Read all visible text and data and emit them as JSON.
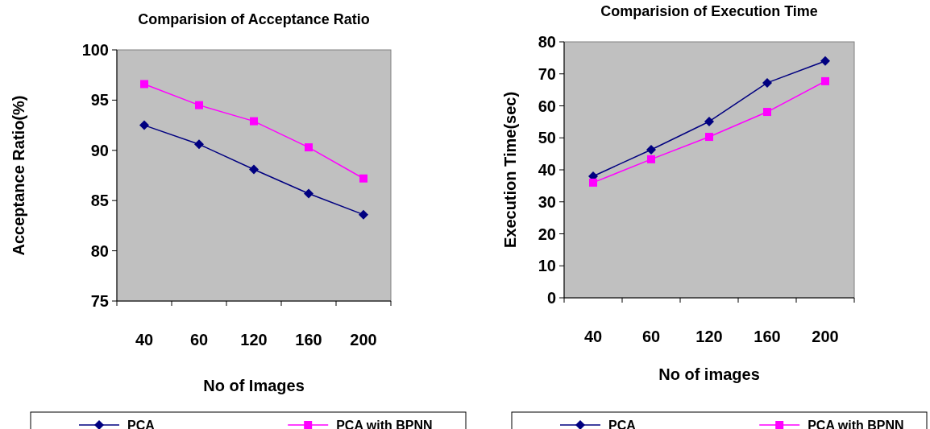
{
  "chart_data": [
    {
      "type": "line",
      "title": "Comparision of Acceptance Ratio",
      "xlabel": "No of Images",
      "ylabel": "Acceptance Ratio(%)",
      "categories": [
        "40",
        "60",
        "120",
        "160",
        "200"
      ],
      "series": [
        {
          "name": "PCA",
          "color": "#000080",
          "marker": "diamond",
          "values": [
            92.5,
            90.6,
            88.1,
            85.7,
            83.6
          ]
        },
        {
          "name": "PCA with BPNN",
          "color": "#ff00ff",
          "marker": "square",
          "values": [
            96.6,
            94.5,
            92.9,
            90.3,
            87.2
          ]
        }
      ],
      "ylim": [
        75,
        100
      ],
      "yticks": [
        75,
        80,
        85,
        90,
        95,
        100
      ],
      "legend": "bottom",
      "grid": false
    },
    {
      "type": "line",
      "title": "Comparision of Execution Time",
      "xlabel": "No of images",
      "ylabel": "Execution Time(sec)",
      "categories": [
        "40",
        "60",
        "120",
        "160",
        "200"
      ],
      "series": [
        {
          "name": "PCA",
          "color": "#000080",
          "marker": "diamond",
          "values": [
            38.0,
            46.3,
            55.1,
            67.2,
            74.0
          ]
        },
        {
          "name": "PCA with BPNN",
          "color": "#ff00ff",
          "marker": "square",
          "values": [
            36.0,
            43.3,
            50.3,
            58.1,
            67.7
          ]
        }
      ],
      "ylim": [
        0,
        80
      ],
      "yticks": [
        0,
        10,
        20,
        30,
        40,
        50,
        60,
        70,
        80
      ],
      "legend": "bottom",
      "grid": false
    }
  ]
}
